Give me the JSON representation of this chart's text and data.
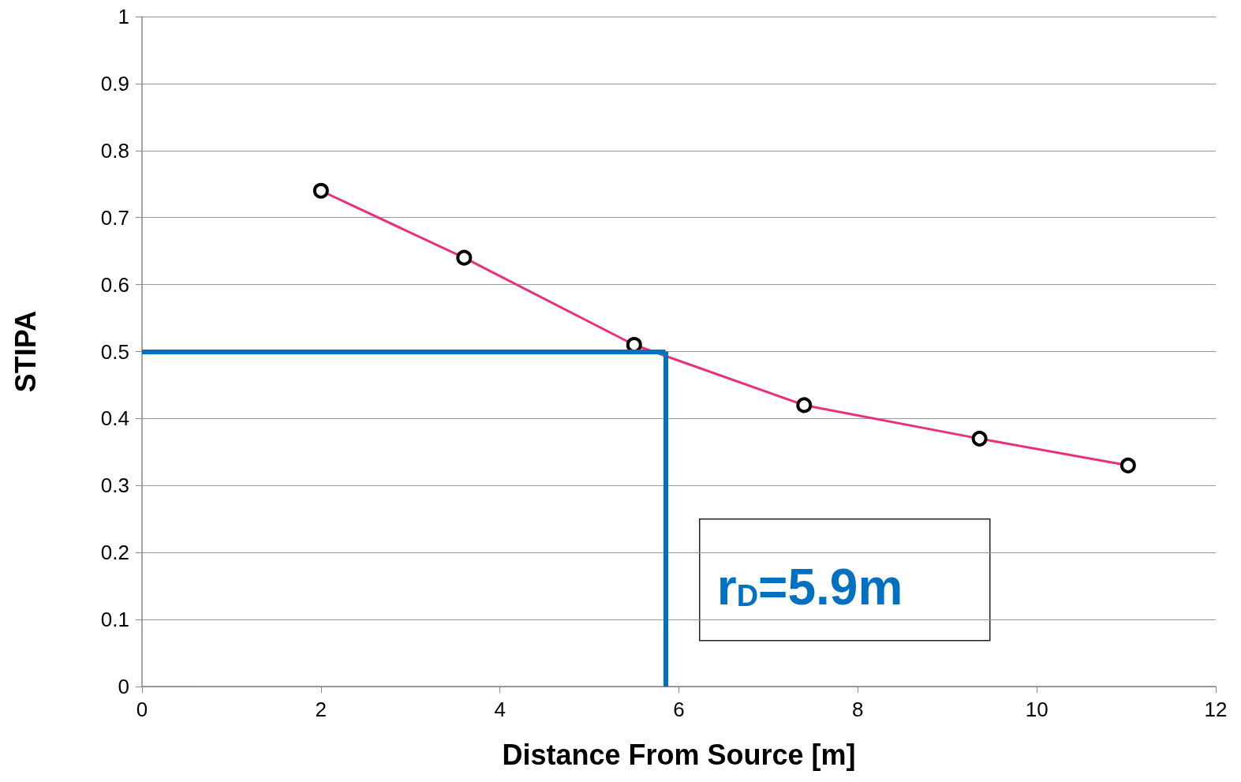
{
  "chart_data": {
    "type": "line",
    "xlabel": "Distance From Source [m]",
    "ylabel": "STIPA",
    "x": [
      2.0,
      3.6,
      5.5,
      7.4,
      9.36,
      11.02
    ],
    "series": [
      {
        "color": "#e8317a",
        "values": [
          0.74,
          0.64,
          0.51,
          0.42,
          0.37,
          0.33
        ]
      }
    ],
    "xlim": [
      0,
      12
    ],
    "xticks": [
      0,
      2,
      4,
      6,
      8,
      10,
      12
    ],
    "ylim": [
      0,
      1
    ],
    "yticks": [
      0,
      0.1,
      0.2,
      0.3,
      0.4,
      0.5,
      0.6,
      0.7,
      0.8,
      0.9,
      1
    ],
    "grid": "y",
    "marker": "circle",
    "line_style": "solid",
    "ref_lines": [
      {
        "axis": "y",
        "value": 0.5,
        "color": "#0070c0"
      },
      {
        "axis": "x",
        "value": 5.85,
        "color": "#0070c0"
      }
    ],
    "annotations": [
      "r$_{D}$=5.9m"
    ]
  }
}
